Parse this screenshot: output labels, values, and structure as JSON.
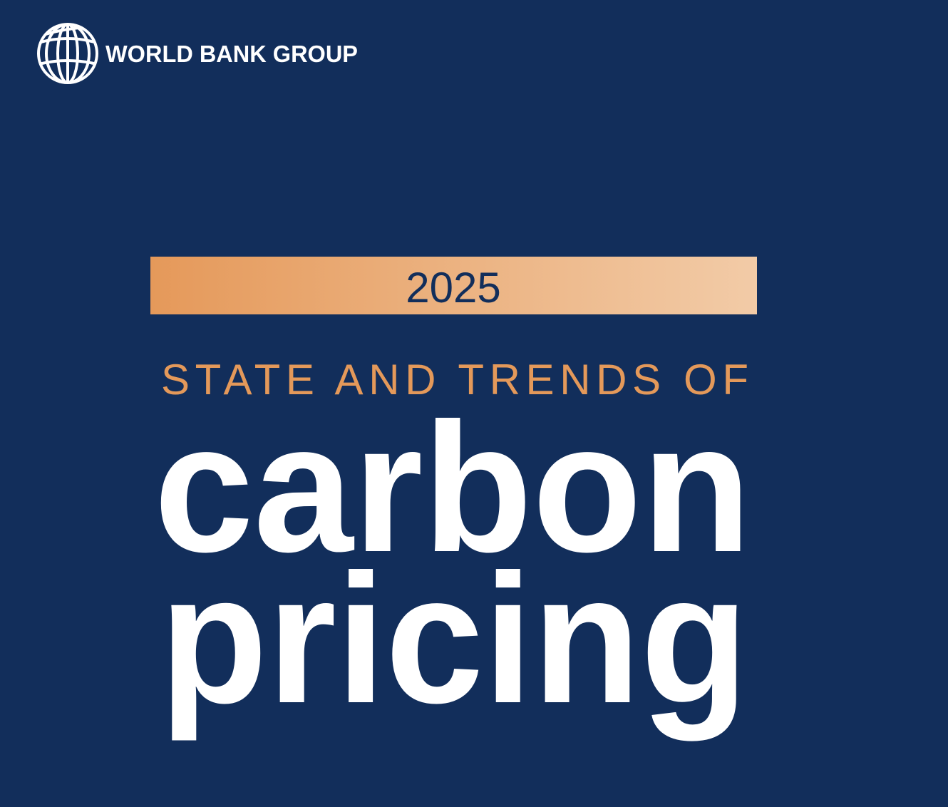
{
  "header": {
    "logo_text": "WORLD BANK GROUP"
  },
  "cover": {
    "year": "2025",
    "subtitle": "STATE AND TRENDS OF",
    "title_lines": [
      "carbon",
      "pricing"
    ]
  }
}
